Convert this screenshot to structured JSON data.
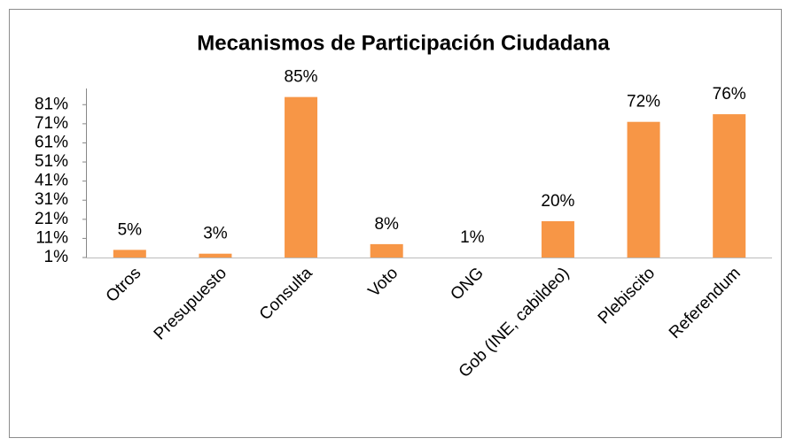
{
  "chart_data": {
    "type": "bar",
    "title": "Mecanismos de Participación Ciudadana",
    "categories": [
      "Otros",
      "Presupuesto",
      "Consulta",
      "Voto",
      "ONG",
      "Gob (INE, cabildeo)",
      "Plebiscito",
      "Referendum"
    ],
    "values": [
      5,
      3,
      85,
      8,
      1,
      20,
      72,
      76
    ],
    "value_labels": [
      "5%",
      "3%",
      "85%",
      "8%",
      "1%",
      "20%",
      "72%",
      "76%"
    ],
    "color": "#f79646",
    "ylim": [
      1,
      89
    ],
    "yticks": [
      {
        "value": 1,
        "label": "1%"
      },
      {
        "value": 11,
        "label": "11%"
      },
      {
        "value": 21,
        "label": "21%"
      },
      {
        "value": 31,
        "label": "31%"
      },
      {
        "value": 41,
        "label": "41%"
      },
      {
        "value": 51,
        "label": "51%"
      },
      {
        "value": 61,
        "label": "61%"
      },
      {
        "value": 71,
        "label": "71%"
      },
      {
        "value": 81,
        "label": "81%"
      }
    ],
    "grid": false
  }
}
